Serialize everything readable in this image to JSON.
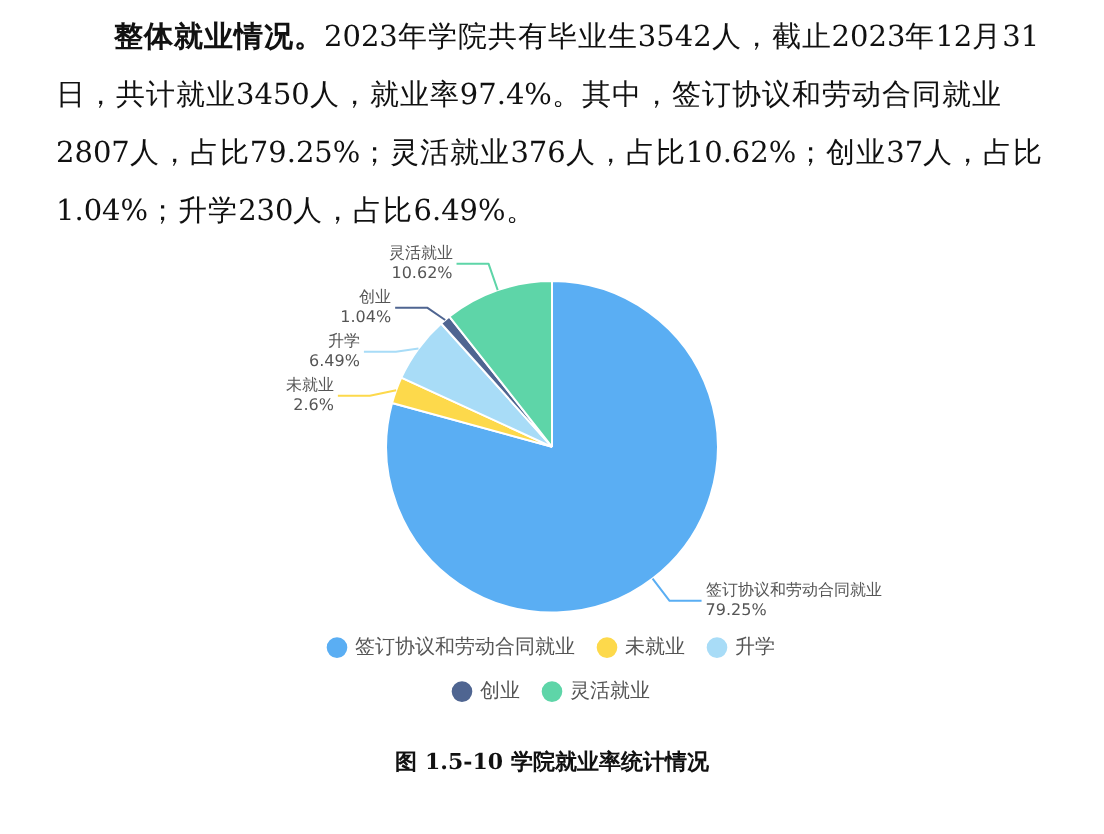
{
  "chart_data": {
    "type": "pie",
    "title": "图 1.5-10 学院就业率统计情况",
    "annotations": [
      "整体就业情况。",
      "2023年学院共有毕业生3542人，截止2023年12月31日，共计就业3450人，就业率97.4%。其中，签订协议和劳动合同就业2807人，占比79.25%；灵活就业376人，占比10.62%；创业37人，占比1.04%；升学230人，占比6.49%。"
    ],
    "categories": [
      "签订协议和劳动合同就业",
      "未就业",
      "升学",
      "创业",
      "灵活就业"
    ],
    "values": [
      79.25,
      2.6,
      6.49,
      1.04,
      10.62
    ],
    "value_labels": [
      "79.25%",
      "2.6%",
      "6.49%",
      "1.04%",
      "10.62%"
    ],
    "colors": [
      "#5aaef3",
      "#fdd94b",
      "#a8dcf7",
      "#4f6591",
      "#5ed5a8"
    ],
    "legend": "bottom"
  }
}
